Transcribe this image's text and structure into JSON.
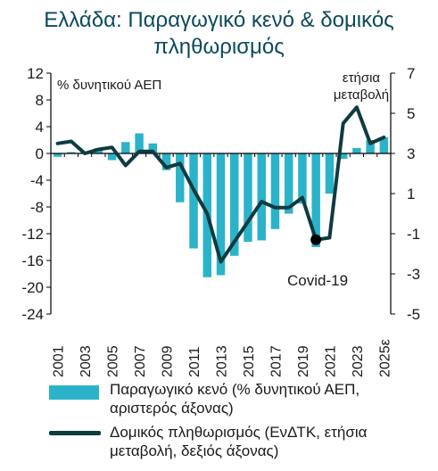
{
  "title": {
    "line1": "Ελλάδα: Παραγωγικό κενό & δομικός",
    "line2": "πληθωρισμός"
  },
  "colors": {
    "bar": "#2bb3c9",
    "line": "#0e3b40",
    "title": "#0b4a5c",
    "axis": "#000000"
  },
  "chart_data": {
    "type": "bar",
    "x": [
      2001,
      2002,
      2003,
      2004,
      2005,
      2006,
      2007,
      2008,
      2009,
      2010,
      2011,
      2012,
      2013,
      2014,
      2015,
      2016,
      2017,
      2018,
      2019,
      2020,
      2021,
      2022,
      2023,
      2024,
      2025
    ],
    "x_tick_labels": [
      "2001",
      "2003",
      "2005",
      "2007",
      "2009",
      "2011",
      "2013",
      "2015",
      "2017",
      "2019",
      "2021",
      "2023",
      "2025ε"
    ],
    "series": [
      {
        "name": "Παραγωγικό κενό (% δυνητικού ΑΕΠ, αριστερός άξονας)",
        "type": "bar",
        "axis": "left",
        "values": [
          -0.5,
          0.2,
          0.3,
          0.8,
          -1.0,
          1.7,
          3.0,
          1.5,
          -2.5,
          -7.3,
          -14.2,
          -18.5,
          -18.2,
          -15.3,
          -13.2,
          -13.0,
          -11.3,
          -9.0,
          -7.5,
          -14.0,
          -6.0,
          -0.8,
          0.8,
          2.0,
          2.4
        ]
      },
      {
        "name": "Δομικός πληθωρισμός (ΕνΔΤΚ, ετήσια μεταβολή, δεξιός άξονας)",
        "type": "line",
        "axis": "right",
        "values": [
          3.5,
          3.6,
          3.0,
          3.2,
          3.3,
          2.4,
          3.1,
          3.1,
          2.3,
          2.5,
          1.2,
          0.0,
          -2.4,
          -1.4,
          -0.4,
          0.6,
          0.3,
          0.3,
          0.8,
          -1.3,
          -1.2,
          4.5,
          5.3,
          3.5,
          3.8
        ]
      }
    ],
    "left_axis": {
      "label": "% δυνητικού ΑΕΠ",
      "ylim": [
        -24,
        12
      ],
      "ticks": [
        12,
        8,
        4,
        0,
        -4,
        -8,
        -12,
        -16,
        -20,
        -24
      ]
    },
    "right_axis": {
      "label_line1": "ετήσια",
      "label_line2": "μεταβολή",
      "ylim": [
        -5,
        7
      ],
      "ticks": [
        7,
        5,
        3,
        1,
        -1,
        -3,
        -5
      ]
    },
    "annotation": {
      "text": "Covid-19",
      "x": 2020,
      "y": -1.3
    },
    "grid": false,
    "legend_position": "bottom"
  },
  "legend": {
    "bar_line1": "Παραγωγικό κενό (% δυνητικού ΑΕΠ,",
    "bar_line2": "αριστερός άξονας)",
    "line_line1": "Δομικός πληθωρισμός (ΕνΔΤΚ, ετήσια",
    "line_line2": "μεταβολή, δεξιός άξονας)"
  }
}
